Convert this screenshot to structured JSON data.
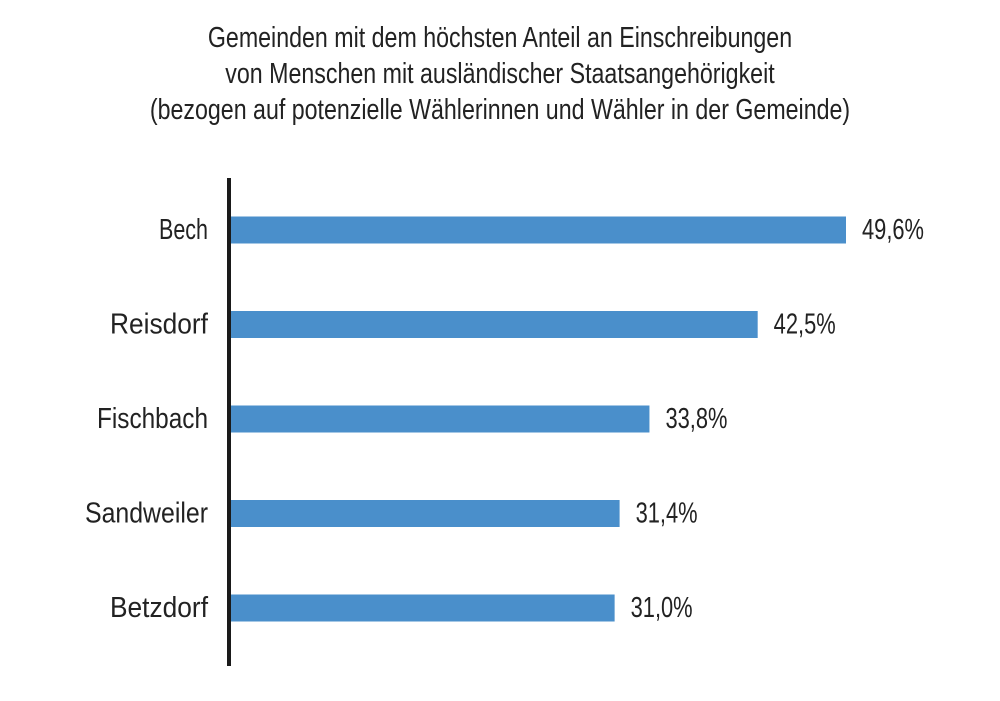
{
  "chart_data": {
    "type": "bar",
    "orientation": "horizontal",
    "title": [
      "Gemeinden mit dem höchsten Anteil an Einschreibungen",
      "von Menschen mit ausländischer Staatsangehörigkeit",
      "(bezogen auf potenzielle Wählerinnen und Wähler in der Gemeinde)"
    ],
    "categories": [
      "Bech",
      "Reisdorf",
      "Fischbach",
      "Sandweiler",
      "Betzdorf"
    ],
    "values": [
      49.6,
      42.5,
      33.8,
      31.4,
      31.0
    ],
    "value_labels": [
      "49,6%",
      "42,5%",
      "33,8%",
      "31,4%",
      "31,0%"
    ],
    "unit": "%",
    "bar_color": "#4a8fcb",
    "axis_color": "#1a1a1a",
    "xlim": [
      0,
      50
    ],
    "grid": false,
    "legend": "none"
  }
}
